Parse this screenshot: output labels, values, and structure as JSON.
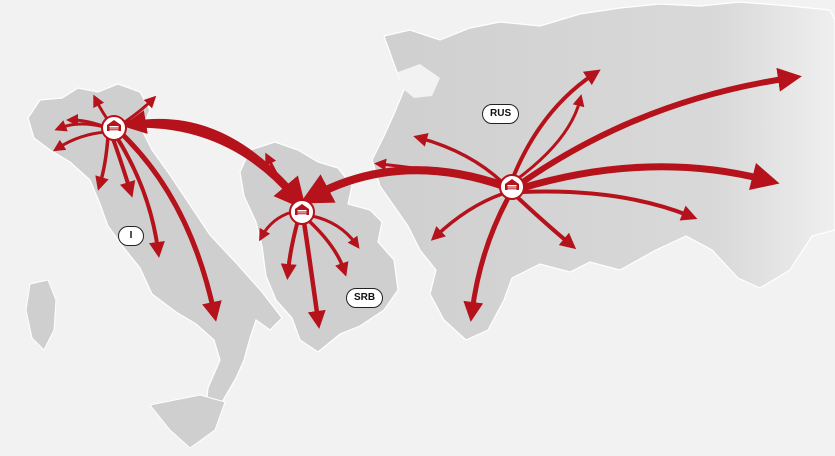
{
  "map": {
    "country_labels": [
      {
        "id": "italy",
        "text": "I"
      },
      {
        "id": "serbia",
        "text": "SRB"
      },
      {
        "id": "russia",
        "text": "RUS"
      }
    ],
    "hubs": [
      {
        "id": "italy-hub",
        "icon": "warehouse-icon"
      },
      {
        "id": "serbia-hub",
        "icon": "warehouse-icon"
      },
      {
        "id": "russia-hub",
        "icon": "warehouse-icon"
      }
    ],
    "colors": {
      "arrow": "#b5121b",
      "land": "#cfcfcf",
      "background": "#f2f2f2",
      "hub_fill": "#b5121b"
    }
  }
}
